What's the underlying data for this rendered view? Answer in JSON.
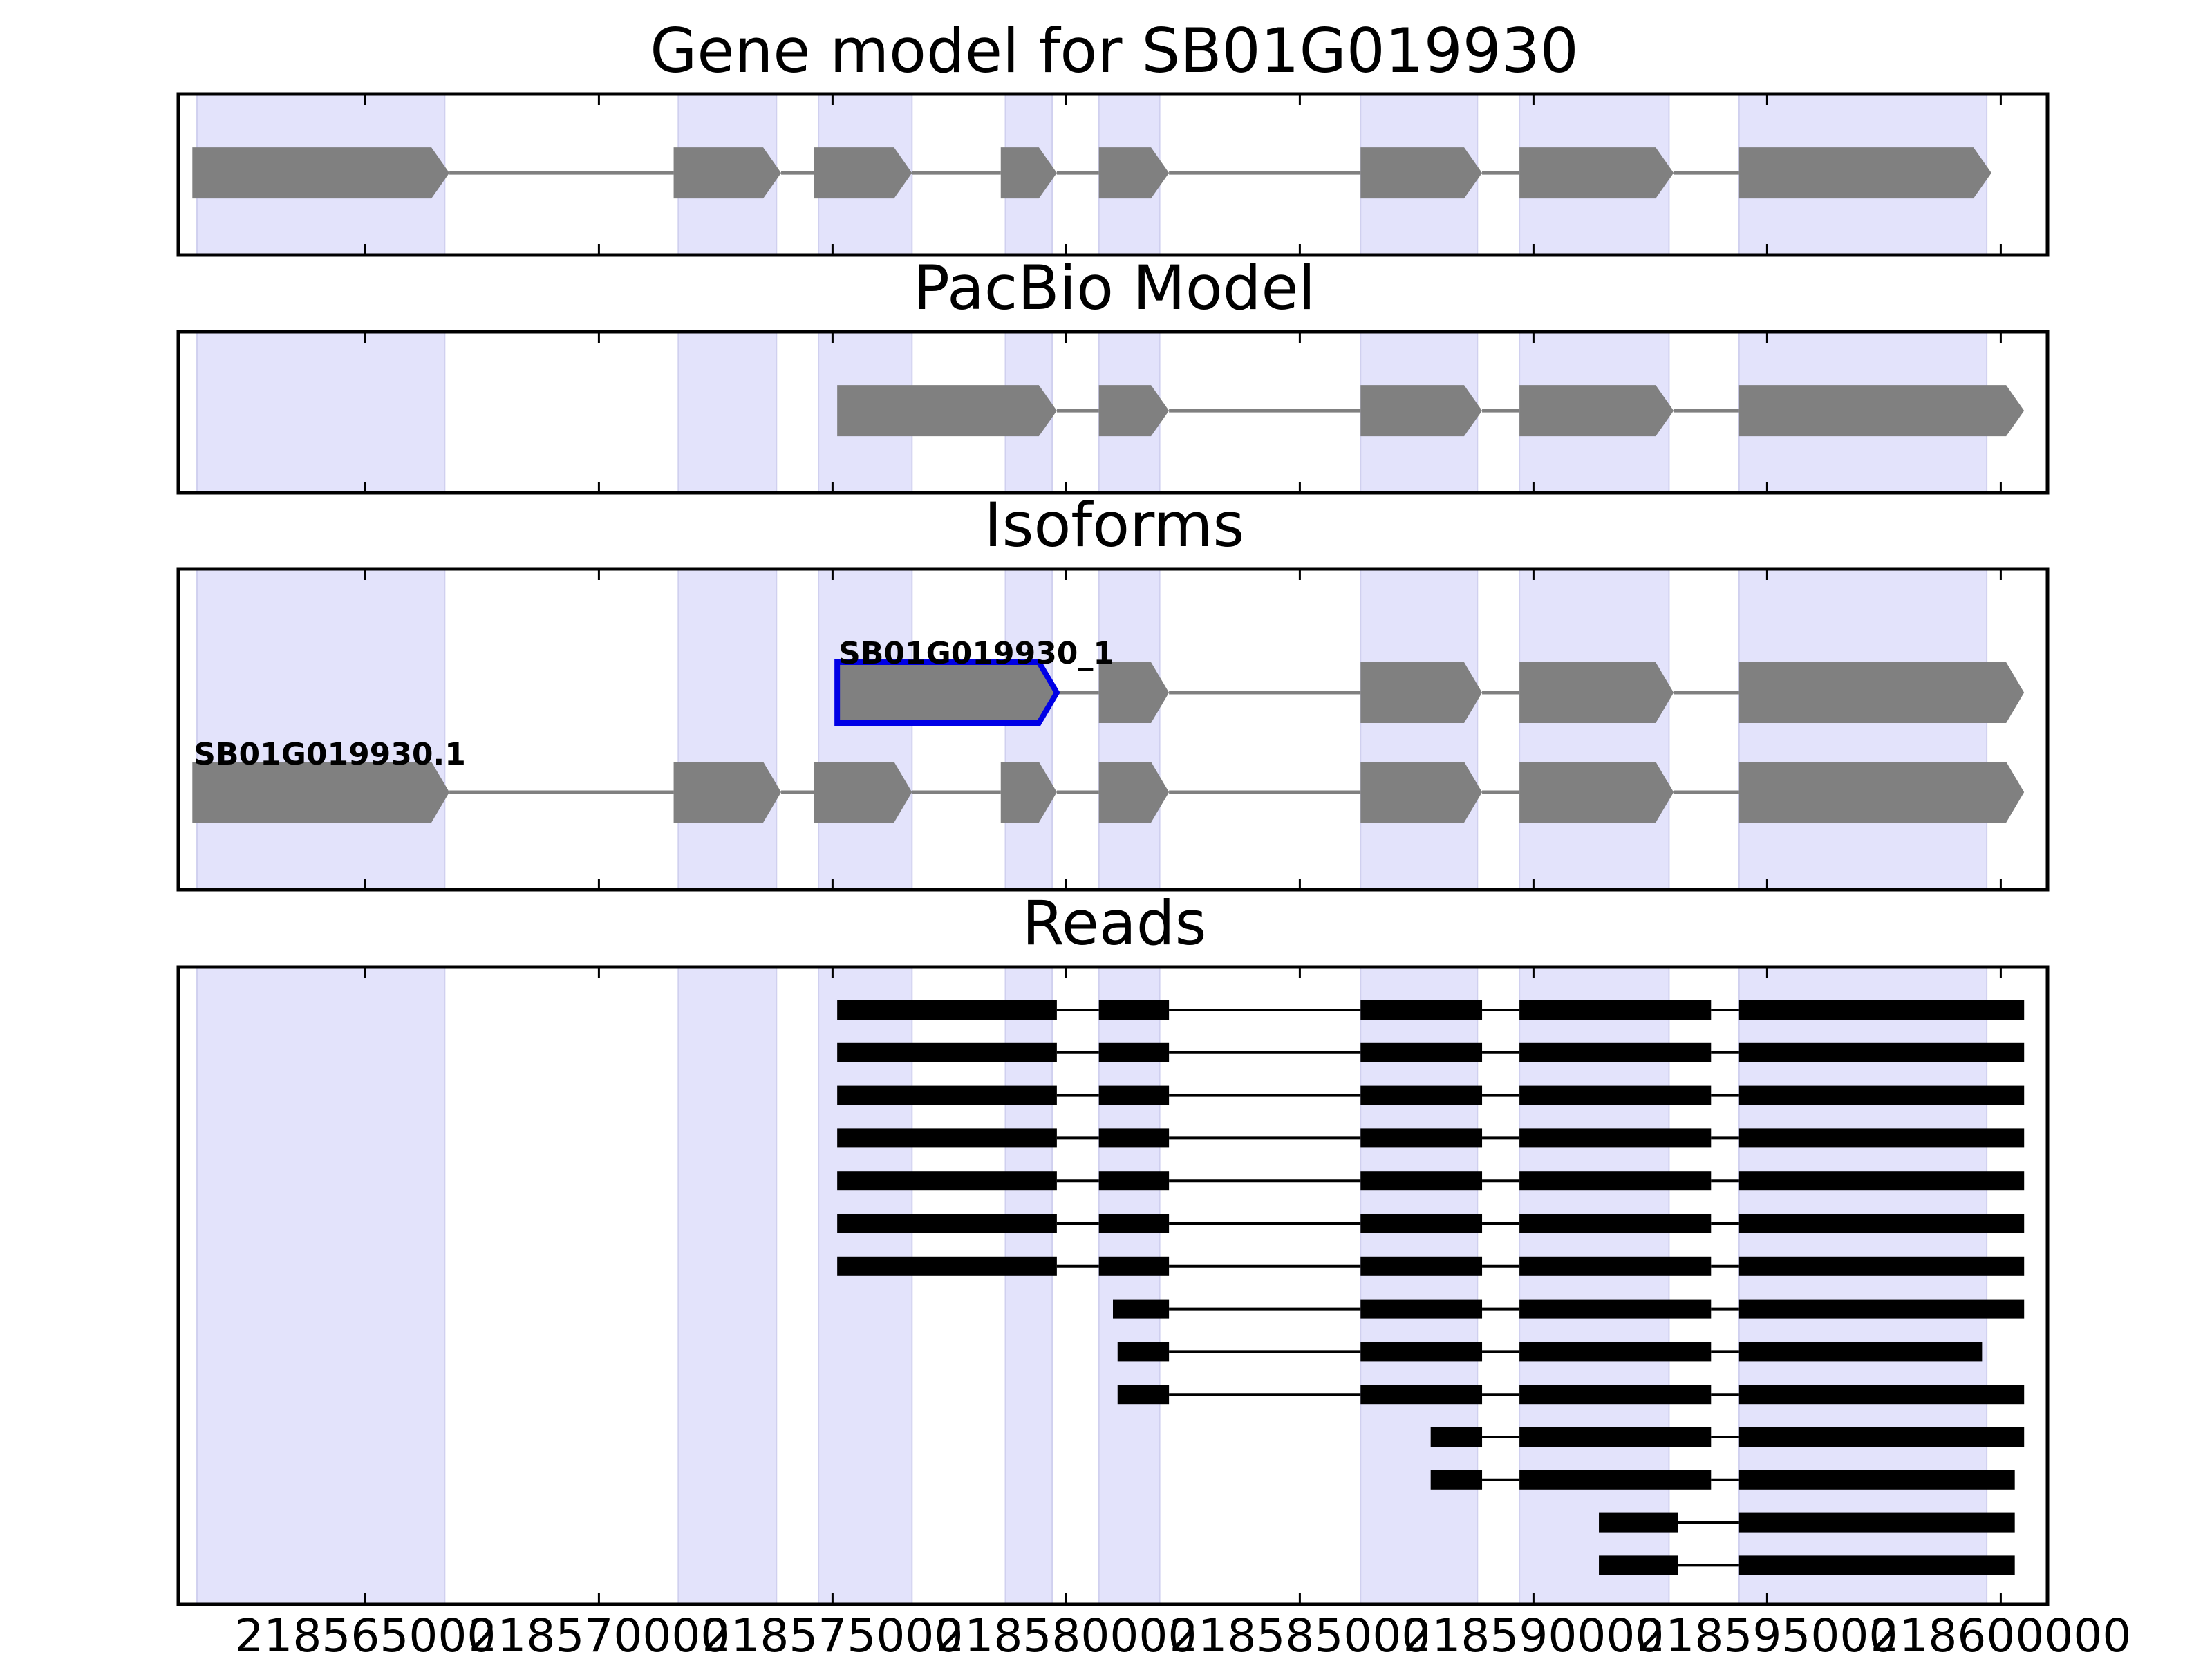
{
  "chart_data": {
    "type": "gene-track",
    "x_axis": {
      "xlim": [
        218561000,
        218601000
      ],
      "ticks": [
        218565000,
        218570000,
        218575000,
        218580000,
        218585000,
        218590000,
        218595000,
        218600000
      ],
      "tick_labels": [
        "218565000",
        "218570000",
        "218575000",
        "218580000",
        "218585000",
        "218590000",
        "218595000",
        "218600000"
      ]
    },
    "highlight_regions": [
      [
        218561400,
        218566700
      ],
      [
        218571700,
        218573800
      ],
      [
        218574700,
        218576700
      ],
      [
        218578700,
        218579700
      ],
      [
        218580700,
        218582000
      ],
      [
        218586300,
        218588800
      ],
      [
        218589700,
        218592900
      ],
      [
        218594400,
        218599700
      ]
    ],
    "colors": {
      "highlight": "#e3e3fb",
      "feature": "#808080",
      "intron": "#808080",
      "read": "#000000",
      "selected_outline": "#0000e6",
      "frame": "#000000"
    },
    "panels": [
      {
        "title": "Gene model for SB01G019930",
        "kind": "gene",
        "models": [
          {
            "label": "",
            "exons": [
              [
                218561300,
                218566800
              ],
              [
                218571600,
                218573900
              ],
              [
                218574600,
                218576700
              ],
              [
                218578600,
                218579800
              ],
              [
                218580700,
                218582200
              ],
              [
                218586300,
                218588900
              ],
              [
                218589700,
                218593000
              ],
              [
                218594400,
                218599800
              ]
            ]
          }
        ]
      },
      {
        "title": "PacBio Model",
        "kind": "gene",
        "models": [
          {
            "label": "",
            "exons": [
              [
                218575100,
                218579800
              ],
              [
                218580700,
                218582200
              ],
              [
                218586300,
                218588900
              ],
              [
                218589700,
                218593000
              ],
              [
                218594400,
                218600500
              ]
            ]
          }
        ]
      },
      {
        "title": "Isoforms",
        "kind": "isoforms",
        "models": [
          {
            "label": "SB01G019930_1",
            "selected": true,
            "exons": [
              [
                218575100,
                218579800
              ],
              [
                218580700,
                218582200
              ],
              [
                218586300,
                218588900
              ],
              [
                218589700,
                218593000
              ],
              [
                218594400,
                218600500
              ]
            ]
          },
          {
            "label": "SB01G019930.1",
            "selected": false,
            "exons": [
              [
                218561300,
                218566800
              ],
              [
                218571600,
                218573900
              ],
              [
                218574600,
                218576700
              ],
              [
                218578600,
                218579800
              ],
              [
                218580700,
                218582200
              ],
              [
                218586300,
                218588900
              ],
              [
                218589700,
                218593000
              ],
              [
                218594400,
                218600500
              ]
            ]
          }
        ]
      },
      {
        "title": "Reads",
        "kind": "reads",
        "reads": [
          [
            [
              218575100,
              218579800
            ],
            [
              218580700,
              218582200
            ],
            [
              218586300,
              218588900
            ],
            [
              218589700,
              218593800
            ],
            [
              218594400,
              218600500
            ]
          ],
          [
            [
              218575100,
              218579800
            ],
            [
              218580700,
              218582200
            ],
            [
              218586300,
              218588900
            ],
            [
              218589700,
              218593800
            ],
            [
              218594400,
              218600500
            ]
          ],
          [
            [
              218575100,
              218579800
            ],
            [
              218580700,
              218582200
            ],
            [
              218586300,
              218588900
            ],
            [
              218589700,
              218593800
            ],
            [
              218594400,
              218600500
            ]
          ],
          [
            [
              218575100,
              218579800
            ],
            [
              218580700,
              218582200
            ],
            [
              218586300,
              218588900
            ],
            [
              218589700,
              218593800
            ],
            [
              218594400,
              218600500
            ]
          ],
          [
            [
              218575100,
              218579800
            ],
            [
              218580700,
              218582200
            ],
            [
              218586300,
              218588900
            ],
            [
              218589700,
              218593800
            ],
            [
              218594400,
              218600500
            ]
          ],
          [
            [
              218575100,
              218579800
            ],
            [
              218580700,
              218582200
            ],
            [
              218586300,
              218588900
            ],
            [
              218589700,
              218593800
            ],
            [
              218594400,
              218600500
            ]
          ],
          [
            [
              218575100,
              218579800
            ],
            [
              218580700,
              218582200
            ],
            [
              218586300,
              218588900
            ],
            [
              218589700,
              218593800
            ],
            [
              218594400,
              218600500
            ]
          ],
          [
            [
              218581000,
              218582200
            ],
            [
              218586300,
              218588900
            ],
            [
              218589700,
              218593800
            ],
            [
              218594400,
              218600500
            ]
          ],
          [
            [
              218581100,
              218582200
            ],
            [
              218586300,
              218588900
            ],
            [
              218589700,
              218593800
            ],
            [
              218594400,
              218599600
            ]
          ],
          [
            [
              218581100,
              218582200
            ],
            [
              218586300,
              218588900
            ],
            [
              218589700,
              218593800
            ],
            [
              218594400,
              218600500
            ]
          ],
          [
            [
              218587800,
              218588900
            ],
            [
              218589700,
              218593800
            ],
            [
              218594400,
              218600500
            ]
          ],
          [
            [
              218587800,
              218588900
            ],
            [
              218589700,
              218593800
            ],
            [
              218594400,
              218600300
            ]
          ],
          [
            [
              218591400,
              218593100
            ],
            [
              218594400,
              218600300
            ]
          ],
          [
            [
              218591400,
              218593100
            ],
            [
              218594400,
              218600300
            ]
          ]
        ]
      }
    ]
  }
}
